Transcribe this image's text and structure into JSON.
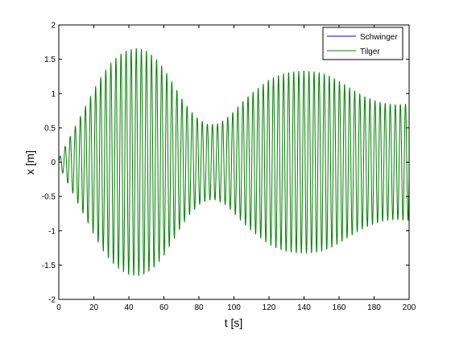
{
  "chart_data": {
    "type": "line",
    "title": "",
    "xlabel": "t [s]",
    "ylabel": "x [m]",
    "xlim": [
      0,
      200
    ],
    "ylim": [
      -2,
      2
    ],
    "xticks": [
      0,
      20,
      40,
      60,
      80,
      100,
      120,
      140,
      160,
      180,
      200
    ],
    "yticks": [
      -2,
      -1.5,
      -1,
      -0.5,
      0,
      0.5,
      1,
      1.5,
      2
    ],
    "xtick_labels": [
      "0",
      "20",
      "40",
      "60",
      "80",
      "100",
      "120",
      "140",
      "160",
      "180",
      "200"
    ],
    "ytick_labels": [
      "-2",
      "-1.5",
      "-1",
      "-0.5",
      "0",
      "0.5",
      "1",
      "1.5",
      "2"
    ],
    "grid": false,
    "legend": {
      "position": "top-right",
      "entries": [
        "Schwinger",
        "Tilger"
      ]
    },
    "series": [
      {
        "name": "Schwinger",
        "color": "#0000ff",
        "oscillation_period": 2.9,
        "envelope": {
          "t": [],
          "amplitude": []
        }
      },
      {
        "name": "Tilger",
        "color": "#008000",
        "oscillation_period": 2.9,
        "envelope": {
          "t": [
            0,
            3,
            6,
            10,
            15,
            20,
            25,
            30,
            35,
            40,
            45,
            50,
            55,
            60,
            65,
            70,
            75,
            80,
            85,
            90,
            95,
            100,
            105,
            110,
            115,
            120,
            125,
            130,
            135,
            140,
            145,
            150,
            155,
            160,
            165,
            170,
            175,
            180,
            185,
            190,
            195,
            200
          ],
          "amplitude": [
            0.05,
            0.2,
            0.35,
            0.55,
            0.8,
            1.05,
            1.28,
            1.45,
            1.57,
            1.64,
            1.66,
            1.62,
            1.52,
            1.36,
            1.15,
            0.93,
            0.75,
            0.62,
            0.55,
            0.55,
            0.62,
            0.74,
            0.88,
            1.0,
            1.1,
            1.2,
            1.26,
            1.3,
            1.32,
            1.33,
            1.32,
            1.3,
            1.25,
            1.18,
            1.1,
            1.02,
            0.95,
            0.9,
            0.86,
            0.84,
            0.84,
            0.85
          ]
        }
      }
    ]
  }
}
